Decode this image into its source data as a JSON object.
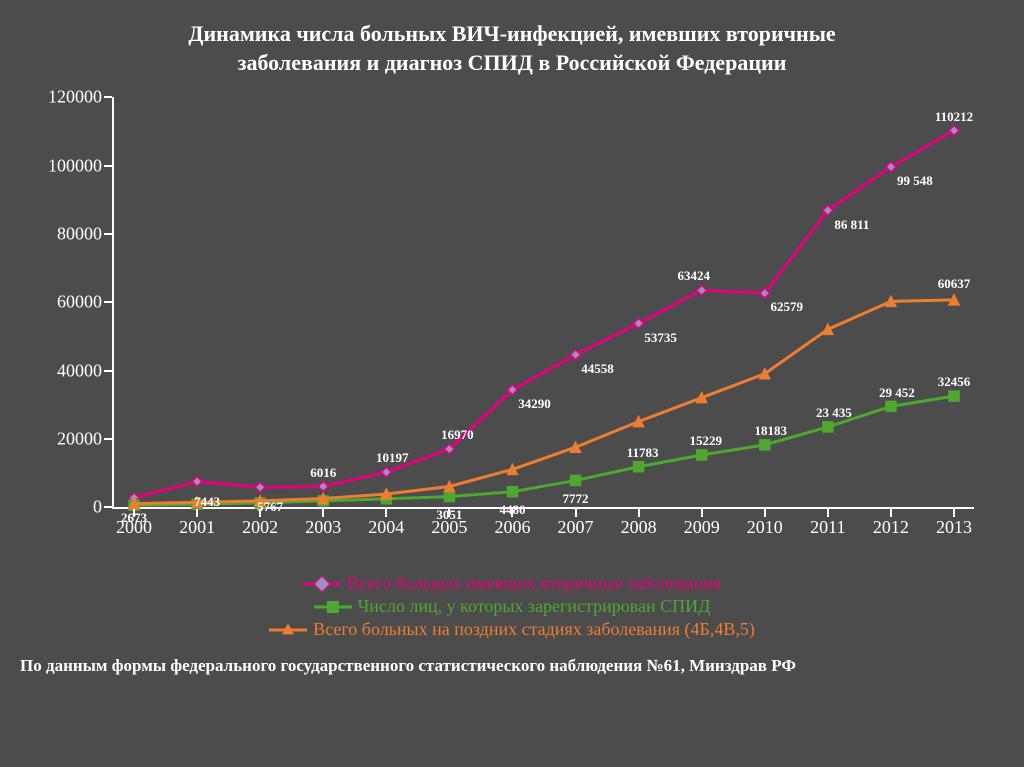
{
  "title_line1": "Динамика числа больных ВИЧ-инфекцией, имевших вторичные",
  "title_line2": "заболевания и диагноз СПИД в Российской Федерации",
  "footnote": "По данным формы федерального государственного статистического наблюдения №61, Минздрав РФ",
  "chart": {
    "type": "line",
    "background_color": "#4c4c4c",
    "axis_color": "#ffffff",
    "tick_font_size": 18,
    "data_label_font_size": 13,
    "data_label_color": "#ffffff",
    "ylim": [
      0,
      120000
    ],
    "ytick_step": 20000,
    "yticks": [
      0,
      20000,
      40000,
      60000,
      80000,
      100000,
      120000
    ],
    "categories": [
      "2000",
      "2001",
      "2002",
      "2003",
      "2004",
      "2005",
      "2006",
      "2007",
      "2008",
      "2009",
      "2010",
      "2011",
      "2012",
      "2013"
    ],
    "line_width": 3,
    "marker_size": 10,
    "series": [
      {
        "key": "secondary",
        "label": "Всего больных имевших вторичные заболевания",
        "color": "#e6007e",
        "marker_fill": "#9b8fc6",
        "marker_shape": "diamond",
        "values": [
          2673,
          7443,
          5767,
          6016,
          10197,
          16970,
          34290,
          44558,
          53735,
          63424,
          62579,
          86811,
          99548,
          110212
        ],
        "data_labels": [
          {
            "i": 0,
            "text": "2673",
            "dy": 20
          },
          {
            "i": 1,
            "text": "7443",
            "dy": 20,
            "dx": 10
          },
          {
            "i": 2,
            "text": "5767",
            "dy": 20,
            "dx": 10
          },
          {
            "i": 3,
            "text": "6016",
            "dy": -14
          },
          {
            "i": 4,
            "text": "10197",
            "dy": -14,
            "dx": 6
          },
          {
            "i": 5,
            "text": "16970",
            "dy": -14,
            "dx": 8
          },
          {
            "i": 6,
            "text": "34290",
            "dy": 14,
            "dx": 22
          },
          {
            "i": 7,
            "text": "44558",
            "dy": 14,
            "dx": 22
          },
          {
            "i": 8,
            "text": "53735",
            "dy": 14,
            "dx": 22
          },
          {
            "i": 9,
            "text": "63424",
            "dy": -14,
            "dx": -8
          },
          {
            "i": 10,
            "text": "62579",
            "dy": 14,
            "dx": 22
          },
          {
            "i": 11,
            "text": "86 811",
            "dy": 14,
            "dx": 24
          },
          {
            "i": 12,
            "text": "99 548",
            "dy": 14,
            "dx": 24
          },
          {
            "i": 13,
            "text": "110212",
            "dy": -14,
            "dx": 0
          }
        ]
      },
      {
        "key": "aids",
        "label": "Число лиц, у которых зарегистрирован СПИД",
        "color": "#4ea72e",
        "marker_fill": "#4ea72e",
        "marker_shape": "square",
        "values": [
          500,
          800,
          1200,
          1800,
          2400,
          3051,
          4480,
          7772,
          11783,
          15229,
          18183,
          23435,
          29452,
          32456
        ],
        "data_labels": [
          {
            "i": 5,
            "text": "3051",
            "dy": 18
          },
          {
            "i": 6,
            "text": "4480",
            "dy": 18
          },
          {
            "i": 7,
            "text": "7772",
            "dy": 18
          },
          {
            "i": 8,
            "text": "11783",
            "dy": -14,
            "dx": 4
          },
          {
            "i": 9,
            "text": "15229",
            "dy": -14,
            "dx": 4
          },
          {
            "i": 10,
            "text": "18183",
            "dy": -14,
            "dx": 6
          },
          {
            "i": 11,
            "text": "23 435",
            "dy": -14,
            "dx": 6
          },
          {
            "i": 12,
            "text": "29 452",
            "dy": -14,
            "dx": 6
          },
          {
            "i": 13,
            "text": "32456",
            "dy": -14,
            "dx": 0
          }
        ]
      },
      {
        "key": "late_stage",
        "label": "Всего больных на поздних стадиях заболевания (4Б,4В,5)",
        "color": "#ed7d31",
        "marker_fill": "#ed7d31",
        "marker_shape": "triangle",
        "values": [
          1000,
          1400,
          1800,
          2500,
          3800,
          6000,
          11000,
          17500,
          25000,
          32000,
          39000,
          52000,
          60200,
          60637
        ],
        "data_labels": [
          {
            "i": 13,
            "text": "60637",
            "dy": -16,
            "dx": 0
          }
        ]
      }
    ],
    "legend": {
      "position": "bottom",
      "font_size": 18,
      "text_color": "#ffffff"
    }
  }
}
